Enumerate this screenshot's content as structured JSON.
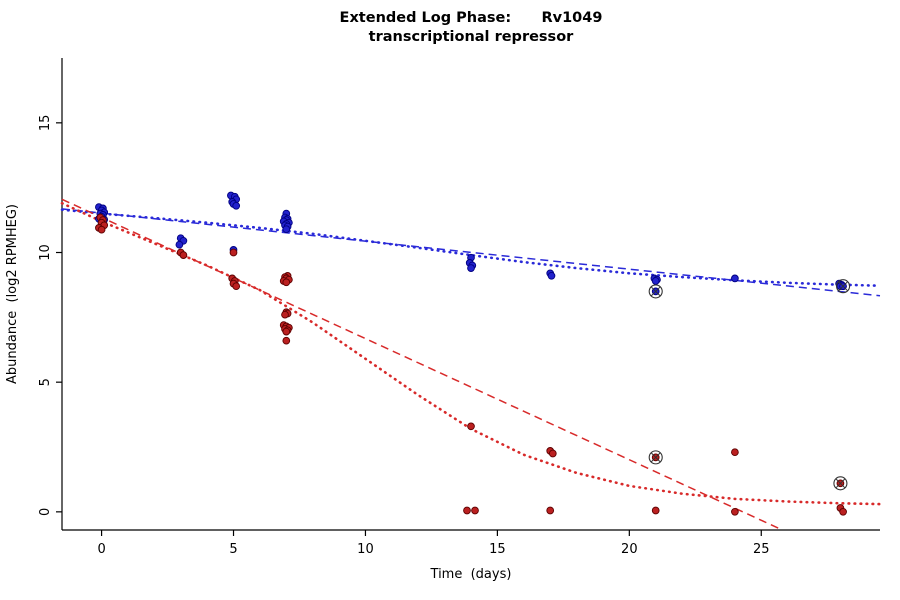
{
  "figure": {
    "background": "#ffffff",
    "axis_color": "#000000"
  },
  "chart_data": {
    "type": "scatter",
    "title": "Extended Log Phase:      Rv1049",
    "subtitle": "transcriptional repressor",
    "xlabel": "Time  (days)",
    "ylabel": "Abundance  (log2 RPMHEG)",
    "xlim": [
      -1.5,
      29.5
    ],
    "ylim": [
      -0.7,
      17.5
    ],
    "xticks": [
      0,
      5,
      10,
      15,
      20,
      25
    ],
    "yticks": [
      0,
      5,
      10,
      15
    ],
    "grid": false,
    "legend": "none",
    "marked_symbol": "circle-x",
    "series": [
      {
        "name": "blue-series",
        "point_color": "#2222cc",
        "point_edge": "#000080",
        "points": [
          [
            -0.1,
            11.75
          ],
          [
            0.05,
            11.7
          ],
          [
            0,
            11.62
          ],
          [
            0.1,
            11.55
          ],
          [
            -0.05,
            11.5
          ],
          [
            0.05,
            11.45
          ],
          [
            0,
            11.38
          ],
          [
            -0.1,
            11.3
          ],
          [
            0.1,
            11.27
          ],
          [
            0,
            11.15
          ],
          [
            0.05,
            11.05
          ],
          [
            3,
            10.55
          ],
          [
            3.1,
            10.45
          ],
          [
            2.95,
            10.3
          ],
          [
            4.9,
            12.2
          ],
          [
            5.05,
            12.15
          ],
          [
            5.1,
            12.05
          ],
          [
            4.95,
            11.95
          ],
          [
            5,
            11.87
          ],
          [
            5.1,
            11.8
          ],
          [
            5,
            10.1
          ],
          [
            7,
            11.5
          ],
          [
            6.95,
            11.35
          ],
          [
            7.05,
            11.3
          ],
          [
            7,
            11.25
          ],
          [
            6.9,
            11.2
          ],
          [
            7.1,
            11.15
          ],
          [
            7,
            11.1
          ],
          [
            6.95,
            11.05
          ],
          [
            7.05,
            11.0
          ],
          [
            7,
            10.9
          ],
          [
            14,
            9.8
          ],
          [
            13.95,
            9.6
          ],
          [
            14.05,
            9.5
          ],
          [
            14,
            9.4
          ],
          [
            17,
            9.2
          ],
          [
            17.05,
            9.1
          ],
          [
            20.95,
            9.0
          ],
          [
            21.05,
            8.95
          ],
          [
            21,
            8.9
          ],
          [
            24,
            9.0
          ],
          [
            27.95,
            8.8
          ],
          [
            28.05,
            8.75
          ],
          [
            28,
            8.7
          ]
        ],
        "marked_points": [
          [
            21,
            8.5
          ],
          [
            28.1,
            8.7
          ]
        ]
      },
      {
        "name": "red-series",
        "point_color": "#bb2020",
        "point_edge": "#5c0000",
        "points": [
          [
            -0.05,
            11.35
          ],
          [
            0.05,
            11.25
          ],
          [
            0,
            11.15
          ],
          [
            0.1,
            11.05
          ],
          [
            -0.1,
            10.95
          ],
          [
            0,
            10.88
          ],
          [
            3,
            10.0
          ],
          [
            3.1,
            9.9
          ],
          [
            5,
            10.0
          ],
          [
            4.95,
            9.0
          ],
          [
            5.05,
            8.9
          ],
          [
            5,
            8.8
          ],
          [
            5.1,
            8.7
          ],
          [
            7.05,
            9.1
          ],
          [
            6.95,
            9.05
          ],
          [
            7,
            9.0
          ],
          [
            7.1,
            8.95
          ],
          [
            6.9,
            8.9
          ],
          [
            7,
            8.85
          ],
          [
            7,
            7.7
          ],
          [
            7.05,
            7.65
          ],
          [
            6.95,
            7.6
          ],
          [
            6.9,
            7.2
          ],
          [
            7,
            7.15
          ],
          [
            7.1,
            7.1
          ],
          [
            6.95,
            7.05
          ],
          [
            7.05,
            7.0
          ],
          [
            7,
            6.95
          ],
          [
            7,
            6.6
          ],
          [
            14,
            3.3
          ],
          [
            13.85,
            0.05
          ],
          [
            14.15,
            0.05
          ],
          [
            17,
            2.35
          ],
          [
            17.1,
            2.25
          ],
          [
            17,
            0.05
          ],
          [
            21,
            0.05
          ],
          [
            24,
            2.3
          ],
          [
            24,
            0.0
          ],
          [
            28,
            0.15
          ],
          [
            28.1,
            0.0
          ]
        ],
        "marked_points": [
          [
            21,
            2.1
          ],
          [
            28,
            1.1
          ]
        ]
      }
    ],
    "fit_lines": [
      {
        "name": "blue-linear-fit",
        "color": "#2a2ad8",
        "style": "dashed",
        "points": [
          [
            -1.5,
            11.68
          ],
          [
            29.5,
            8.33
          ]
        ]
      },
      {
        "name": "blue-smooth-fit",
        "color": "#2a2ad8",
        "style": "dotted",
        "points": [
          [
            -1.5,
            11.65
          ],
          [
            0,
            11.5
          ],
          [
            2,
            11.33
          ],
          [
            4,
            11.15
          ],
          [
            6,
            10.95
          ],
          [
            8,
            10.72
          ],
          [
            10,
            10.45
          ],
          [
            12,
            10.18
          ],
          [
            14,
            9.9
          ],
          [
            16,
            9.63
          ],
          [
            18,
            9.4
          ],
          [
            20,
            9.2
          ],
          [
            22,
            9.05
          ],
          [
            24,
            8.93
          ],
          [
            26,
            8.83
          ],
          [
            28,
            8.76
          ],
          [
            29.5,
            8.72
          ]
        ]
      },
      {
        "name": "red-linear-fit",
        "color": "#d82a2a",
        "style": "dashed",
        "points": [
          [
            -1.5,
            12.05
          ],
          [
            25.8,
            -0.7
          ]
        ]
      },
      {
        "name": "red-smooth-fit",
        "color": "#d82a2a",
        "style": "dotted",
        "points": [
          [
            -1.5,
            11.9
          ],
          [
            0,
            11.2
          ],
          [
            2,
            10.35
          ],
          [
            4,
            9.5
          ],
          [
            6,
            8.55
          ],
          [
            8,
            7.3
          ],
          [
            10,
            5.9
          ],
          [
            12,
            4.5
          ],
          [
            14,
            3.2
          ],
          [
            16,
            2.2
          ],
          [
            18,
            1.5
          ],
          [
            20,
            1.0
          ],
          [
            22,
            0.7
          ],
          [
            24,
            0.5
          ],
          [
            26,
            0.4
          ],
          [
            28,
            0.33
          ],
          [
            29.5,
            0.3
          ]
        ]
      }
    ]
  }
}
